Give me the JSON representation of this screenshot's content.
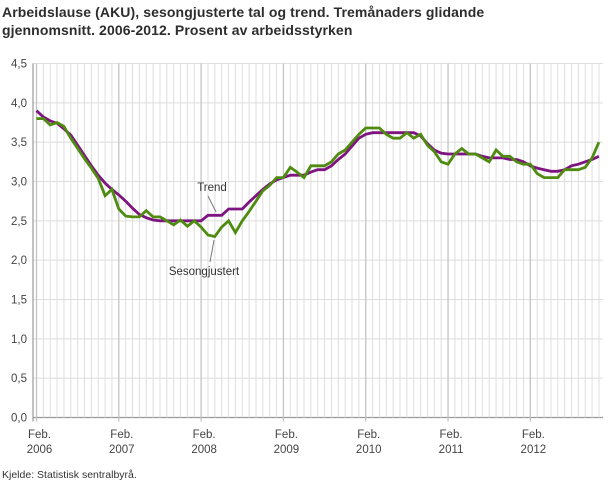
{
  "source_note": "Kjelde: Statistisk sentralbyrå.",
  "chart_data": {
    "type": "line",
    "title_line1": "Arbeidslause (AKU), sesongjusterte tal og trend. Tremånaders glidande",
    "title_line2": "gjennomsnitt. 2006-2012. Prosent av arbeidsstyrken",
    "ylabel": "Prosent av arbeidsstyrken",
    "ylim": [
      0,
      4.5
    ],
    "ytick_step": 0.5,
    "grid": "light gray: vertical line every month, horizontal line every 0.5; year (Feb.) verticals slightly darker",
    "legend_position": "inline annotations with leader lines",
    "y_tick_labels": [
      "4,5",
      "4,0",
      "3,5",
      "3,0",
      "2,5",
      "2,0",
      "1,5",
      "1,0",
      "0,5",
      "0,0"
    ],
    "x_ticks": [
      {
        "index": 0,
        "label_month": "Feb.",
        "label_year": "2006"
      },
      {
        "index": 12,
        "label_month": "Feb.",
        "label_year": "2007"
      },
      {
        "index": 24,
        "label_month": "Feb.",
        "label_year": "2008"
      },
      {
        "index": 36,
        "label_month": "Feb.",
        "label_year": "2009"
      },
      {
        "index": 48,
        "label_month": "Feb.",
        "label_year": "2010"
      },
      {
        "index": 60,
        "label_month": "Feb.",
        "label_year": "2011"
      },
      {
        "index": 72,
        "label_month": "Feb.",
        "label_year": "2012"
      }
    ],
    "annotations": {
      "trend": "Trend",
      "seasonal": "Sesongjustert"
    },
    "x": [
      "2006-02",
      "2006-03",
      "2006-04",
      "2006-05",
      "2006-06",
      "2006-07",
      "2006-08",
      "2006-09",
      "2006-10",
      "2006-11",
      "2006-12",
      "2007-01",
      "2007-02",
      "2007-03",
      "2007-04",
      "2007-05",
      "2007-06",
      "2007-07",
      "2007-08",
      "2007-09",
      "2007-10",
      "2007-11",
      "2007-12",
      "2008-01",
      "2008-02",
      "2008-03",
      "2008-04",
      "2008-05",
      "2008-06",
      "2008-07",
      "2008-08",
      "2008-09",
      "2008-10",
      "2008-11",
      "2008-12",
      "2009-01",
      "2009-02",
      "2009-03",
      "2009-04",
      "2009-05",
      "2009-06",
      "2009-07",
      "2009-08",
      "2009-09",
      "2009-10",
      "2009-11",
      "2009-12",
      "2010-01",
      "2010-02",
      "2010-03",
      "2010-04",
      "2010-05",
      "2010-06",
      "2010-07",
      "2010-08",
      "2010-09",
      "2010-10",
      "2010-11",
      "2010-12",
      "2011-01",
      "2011-02",
      "2011-03",
      "2011-04",
      "2011-05",
      "2011-06",
      "2011-07",
      "2011-08",
      "2011-09",
      "2011-10",
      "2011-11",
      "2011-12",
      "2012-01",
      "2012-02",
      "2012-03",
      "2012-04",
      "2012-05",
      "2012-06",
      "2012-07",
      "2012-08",
      "2012-09",
      "2012-10",
      "2012-11",
      "2012-12"
    ],
    "series": [
      {
        "name": "Trend",
        "color": "#7d1480",
        "values": [
          3.9,
          3.82,
          3.77,
          3.74,
          3.67,
          3.59,
          3.46,
          3.33,
          3.2,
          3.08,
          2.98,
          2.9,
          2.83,
          2.75,
          2.66,
          2.58,
          2.54,
          2.51,
          2.5,
          2.5,
          2.5,
          2.5,
          2.5,
          2.5,
          2.5,
          2.57,
          2.57,
          2.57,
          2.65,
          2.65,
          2.65,
          2.74,
          2.82,
          2.9,
          2.97,
          3.02,
          3.05,
          3.08,
          3.08,
          3.08,
          3.12,
          3.15,
          3.15,
          3.2,
          3.28,
          3.35,
          3.45,
          3.55,
          3.6,
          3.62,
          3.62,
          3.62,
          3.62,
          3.62,
          3.62,
          3.62,
          3.58,
          3.48,
          3.4,
          3.36,
          3.35,
          3.35,
          3.35,
          3.35,
          3.35,
          3.32,
          3.3,
          3.3,
          3.3,
          3.28,
          3.28,
          3.25,
          3.2,
          3.17,
          3.15,
          3.13,
          3.13,
          3.15,
          3.2,
          3.22,
          3.25,
          3.28,
          3.32
        ]
      },
      {
        "name": "Sesongjustert",
        "color": "#4e8b0f",
        "values": [
          3.8,
          3.8,
          3.72,
          3.75,
          3.7,
          3.55,
          3.42,
          3.29,
          3.17,
          3.04,
          2.82,
          2.9,
          2.65,
          2.56,
          2.55,
          2.55,
          2.63,
          2.55,
          2.55,
          2.5,
          2.45,
          2.51,
          2.43,
          2.5,
          2.42,
          2.32,
          2.3,
          2.42,
          2.5,
          2.35,
          2.5,
          2.62,
          2.75,
          2.88,
          2.95,
          3.05,
          3.05,
          3.18,
          3.12,
          3.05,
          3.2,
          3.2,
          3.2,
          3.25,
          3.35,
          3.4,
          3.5,
          3.6,
          3.68,
          3.68,
          3.68,
          3.6,
          3.55,
          3.55,
          3.62,
          3.55,
          3.6,
          3.46,
          3.38,
          3.25,
          3.22,
          3.35,
          3.42,
          3.35,
          3.35,
          3.3,
          3.25,
          3.4,
          3.32,
          3.32,
          3.25,
          3.22,
          3.22,
          3.1,
          3.05,
          3.05,
          3.05,
          3.15,
          3.15,
          3.15,
          3.18,
          3.3,
          3.5
        ]
      }
    ],
    "colors": {
      "trend_line": "#7d1480",
      "seasonal_line": "#4e8b0f",
      "grid_minor": "#dedede",
      "grid_year": "#c4c4c4",
      "axis": "#999999",
      "tick_text": "#444444",
      "title_text": "#2d2d2d"
    }
  }
}
